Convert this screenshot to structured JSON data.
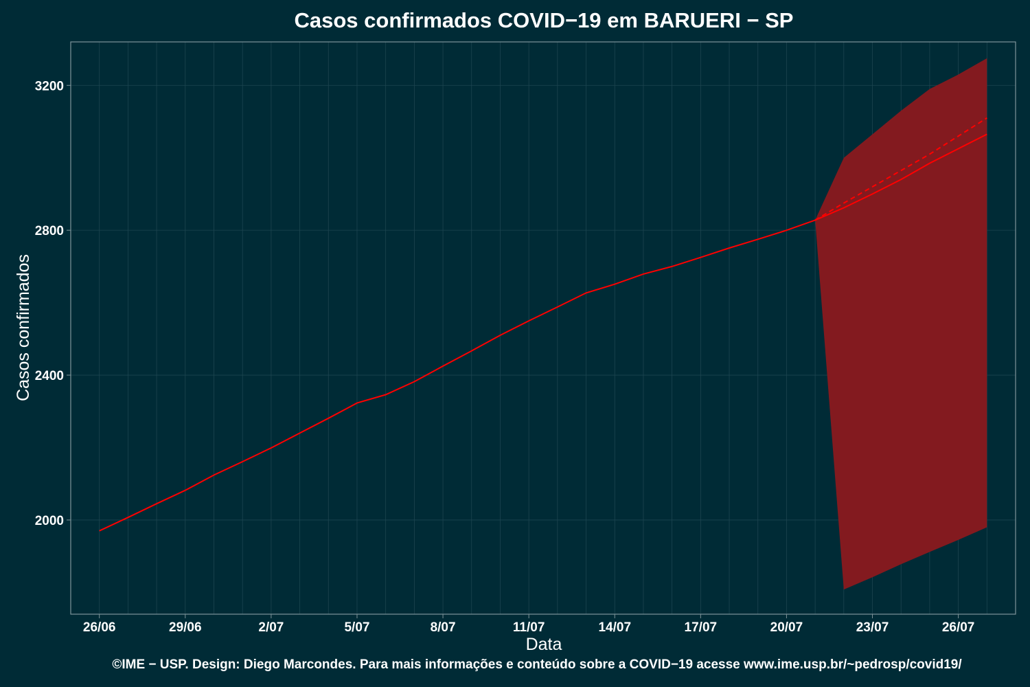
{
  "chart_data": {
    "type": "line",
    "title": "Casos confirmados COVID−19 em BARUERI − SP",
    "xlabel": "Data",
    "ylabel": "Casos confirmados",
    "x_ticks": [
      "26/06",
      "29/06",
      "2/07",
      "5/07",
      "8/07",
      "11/07",
      "14/07",
      "17/07",
      "20/07",
      "23/07",
      "26/07"
    ],
    "y_ticks": [
      2000,
      2400,
      2800,
      3200
    ],
    "xlim": [
      "2020-06-25",
      "2020-07-28"
    ],
    "ylim": [
      1740,
      3320
    ],
    "grid": true,
    "colors": {
      "background": "#002b36",
      "line": "#ff0000",
      "band": "#831a1f",
      "grid": "#1d4550",
      "border": "#7f9499"
    },
    "series": [
      {
        "style": "solid",
        "x": [
          "2020-06-26",
          "2020-06-27",
          "2020-06-28",
          "2020-06-29",
          "2020-06-30",
          "2020-07-01",
          "2020-07-02",
          "2020-07-03",
          "2020-07-04",
          "2020-07-05",
          "2020-07-06",
          "2020-07-07",
          "2020-07-08",
          "2020-07-09",
          "2020-07-10",
          "2020-07-11",
          "2020-07-12",
          "2020-07-13",
          "2020-07-14",
          "2020-07-15",
          "2020-07-16",
          "2020-07-17",
          "2020-07-18",
          "2020-07-19",
          "2020-07-20",
          "2020-07-21",
          "2020-07-22",
          "2020-07-23",
          "2020-07-24",
          "2020-07-25",
          "2020-07-26",
          "2020-07-27"
        ],
        "values": [
          1970,
          2007,
          2045,
          2082,
          2124,
          2161,
          2199,
          2240,
          2281,
          2323,
          2346,
          2382,
          2425,
          2467,
          2510,
          2550,
          2588,
          2627,
          2651,
          2679,
          2700,
          2725,
          2751,
          2775,
          2800,
          2828,
          2862,
          2900,
          2940,
          2985,
          3025,
          3065
        ]
      },
      {
        "style": "dashed",
        "x": [
          "2020-07-21",
          "2020-07-22",
          "2020-07-23",
          "2020-07-24",
          "2020-07-25",
          "2020-07-26",
          "2020-07-27"
        ],
        "values": [
          2828,
          2875,
          2920,
          2965,
          3010,
          3060,
          3110
        ]
      }
    ],
    "band": {
      "x": [
        "2020-07-21",
        "2020-07-22",
        "2020-07-23",
        "2020-07-24",
        "2020-07-25",
        "2020-07-26",
        "2020-07-27"
      ],
      "lower": [
        2828,
        1808,
        1842,
        1878,
        1912,
        1945,
        1980
      ],
      "upper": [
        2828,
        3000,
        3065,
        3130,
        3190,
        3230,
        3275
      ]
    }
  },
  "footer": "©IME − USP. Design: Diego Marcondes. Para mais informações e conteúdo sobre a COVID−19 acesse www.ime.usp.br/~pedrosp/covid19/"
}
